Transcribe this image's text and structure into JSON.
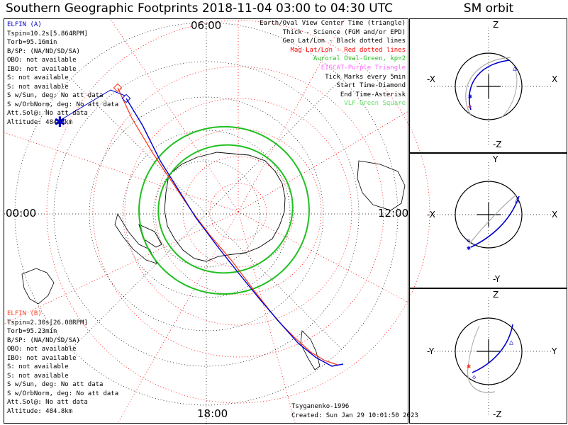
{
  "title": "Southern Geographic Footprints 2018-11-04 03:00 to 04:30 UTC",
  "sm_title": "SM orbit",
  "clock_labels": {
    "top": "06:00",
    "left": "00:00",
    "right": "12:00",
    "bottom": "18:00"
  },
  "elfin_a": {
    "name": "ELFIN (A)",
    "color": "#0000d0",
    "lines": [
      "Tspin=10.2s[5.864RPM]",
      "Torb=95.16min",
      "B/SP: (NA/ND/SD/SA)",
      "OBO: not available",
      "IBO: not available",
      "S: not available",
      "S: not available",
      "S w/Sun, deg: No att data",
      "S w/OrbNorm, deg: No att data",
      "Att.Sol@: No att data",
      "Altitude: 484.3km"
    ]
  },
  "elfin_b": {
    "name": "ELFIN (B)",
    "color": "#ff4020",
    "lines": [
      "Tspin=2.30s[26.08RPM]",
      "Torb=95.23min",
      "B/SP: (NA/ND/SD/SA)",
      "OBO: not available",
      "IBO: not available",
      "S: not available",
      "S: not available",
      "S w/Sun, deg: No att data",
      "S w/OrbNorm, deg: No att data",
      "Att.Sol@: No att data",
      "Altitude: 484.8km"
    ]
  },
  "legend": [
    {
      "text": "Earth/Oval View Center Time (triangle)",
      "color": "#000000"
    },
    {
      "text": "Thick - Science (FGM and/or EPD)",
      "color": "#000000"
    },
    {
      "text": "Geo Lat/Lon - Black dotted lines",
      "color": "#000000"
    },
    {
      "text": "Mag Lat/Lon - Red dotted lines",
      "color": "#ff0000"
    },
    {
      "text": "Auroral Oval-Green, kp=2",
      "color": "#20c020"
    },
    {
      "text": "EISCAT-Purple Triangle",
      "color": "#ff66ff"
    },
    {
      "text": "Tick Marks every 5min",
      "color": "#000000"
    },
    {
      "text": "Start Time-Diamond",
      "color": "#000000"
    },
    {
      "text": "End Time-Asterisk",
      "color": "#000000"
    },
    {
      "text": "VLF-Green Square",
      "color": "#66dd66"
    }
  ],
  "footer": {
    "model": "Tsyganenko-1996",
    "created": "Created: Sun Jan 29 10:01:50 2023"
  },
  "sm_panels": [
    {
      "top": "Z",
      "bottom": "-Z",
      "left": "-X",
      "right": "X"
    },
    {
      "top": "Y",
      "bottom": "-Y",
      "left": "-X",
      "right": "X"
    },
    {
      "top": "Z",
      "bottom": "-Z",
      "left": "-Y",
      "right": "Y"
    }
  ],
  "colors": {
    "oval": "#20c020",
    "mag_grid": "#ff0000",
    "geo_grid": "#000000",
    "track_a": "#0000d0",
    "track_b": "#ff3010",
    "earth_outline": "#000000"
  }
}
